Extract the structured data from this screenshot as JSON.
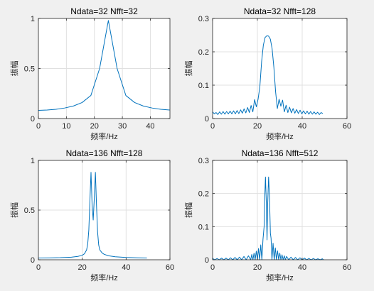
{
  "figure": {
    "background": "#f0f0f0",
    "line_color": "#0072bd",
    "axis_color": "#262626",
    "grid_color": "#e0e0e0"
  },
  "chart_data": [
    {
      "type": "line",
      "title": "Ndata=32 Nfft=32",
      "xlabel": "频率/Hz",
      "ylabel": "振幅",
      "xlim": [
        0,
        47
      ],
      "ylim": [
        0,
        1
      ],
      "xticks": [
        0,
        10,
        20,
        30,
        40
      ],
      "yticks": [
        0,
        0.5,
        1
      ],
      "xticklabels": [
        "0",
        "10",
        "20",
        "30",
        "40"
      ],
      "yticklabels": [
        "0",
        "0.5",
        "1"
      ],
      "grid": true,
      "series": [
        {
          "x": [
            0,
            3.125,
            6.25,
            9.375,
            12.5,
            15.625,
            18.75,
            21.875,
            25,
            28.125,
            31.25,
            34.375,
            37.5,
            40.625,
            43.75,
            46.875
          ],
          "y": [
            0.082,
            0.085,
            0.092,
            0.105,
            0.125,
            0.16,
            0.23,
            0.5,
            0.98,
            0.5,
            0.23,
            0.16,
            0.125,
            0.105,
            0.092,
            0.085
          ]
        }
      ]
    },
    {
      "type": "line",
      "title": "Ndata=32 Nfft=128",
      "xlabel": "频率/Hz",
      "ylabel": "振幅",
      "xlim": [
        0,
        60
      ],
      "ylim": [
        0,
        0.3
      ],
      "xticks": [
        0,
        20,
        40,
        60
      ],
      "yticks": [
        0,
        0.1,
        0.2,
        0.3
      ],
      "xticklabels": [
        "0",
        "20",
        "40",
        "60"
      ],
      "yticklabels": [
        "0",
        "0.1",
        "0.2",
        "0.3"
      ],
      "grid": true,
      "series": [
        {
          "x": [
            0,
            0.78,
            1.56,
            2.34,
            3.13,
            3.91,
            4.69,
            5.47,
            6.25,
            7.03,
            7.81,
            8.59,
            9.38,
            10.16,
            10.94,
            11.72,
            12.5,
            13.28,
            14.06,
            14.84,
            15.63,
            16.41,
            17.19,
            17.97,
            18.75,
            19.53,
            20.31,
            21.09,
            21.88,
            22.66,
            23.44,
            24.22,
            25,
            25.78,
            26.56,
            27.34,
            28.13,
            28.91,
            29.69,
            30.47,
            31.25,
            32.03,
            32.81,
            33.59,
            34.38,
            35.16,
            35.94,
            36.72,
            37.5,
            38.28,
            39.06,
            39.84,
            40.63,
            41.41,
            42.19,
            42.97,
            43.75,
            44.53,
            45.31,
            46.09,
            46.88,
            47.66,
            48.44,
            49.22
          ],
          "y": [
            0.02,
            0.014,
            0.018,
            0.012,
            0.02,
            0.013,
            0.021,
            0.013,
            0.021,
            0.014,
            0.022,
            0.014,
            0.023,
            0.014,
            0.024,
            0.015,
            0.026,
            0.016,
            0.029,
            0.017,
            0.033,
            0.018,
            0.039,
            0.02,
            0.057,
            0.035,
            0.058,
            0.095,
            0.17,
            0.22,
            0.243,
            0.248,
            0.247,
            0.238,
            0.21,
            0.155,
            0.08,
            0.03,
            0.058,
            0.037,
            0.055,
            0.02,
            0.04,
            0.018,
            0.034,
            0.017,
            0.03,
            0.016,
            0.027,
            0.015,
            0.025,
            0.014,
            0.023,
            0.014,
            0.022,
            0.013,
            0.021,
            0.013,
            0.02,
            0.013,
            0.019,
            0.012,
            0.018,
            0.015
          ]
        }
      ]
    },
    {
      "type": "line",
      "title": "Ndata=136 Nfft=128",
      "xlabel": "频率/Hz",
      "ylabel": "振幅",
      "xlim": [
        0,
        60
      ],
      "ylim": [
        0,
        1
      ],
      "xticks": [
        0,
        20,
        40,
        60
      ],
      "yticks": [
        0,
        0.5,
        1
      ],
      "xticklabels": [
        "0",
        "20",
        "40",
        "60"
      ],
      "yticklabels": [
        "0",
        "0.5",
        "1"
      ],
      "grid": true,
      "series": [
        {
          "x": [
            0,
            5,
            10,
            15,
            18,
            20,
            21,
            22,
            22.5,
            23,
            23.5,
            24,
            24.5,
            25,
            25.5,
            26,
            26.5,
            27,
            27.5,
            28,
            29,
            30,
            32,
            35,
            40,
            45,
            49.5
          ],
          "y": [
            0.018,
            0.019,
            0.021,
            0.026,
            0.034,
            0.045,
            0.06,
            0.1,
            0.16,
            0.3,
            0.6,
            0.88,
            0.55,
            0.4,
            0.62,
            0.88,
            0.55,
            0.28,
            0.15,
            0.1,
            0.07,
            0.055,
            0.04,
            0.03,
            0.023,
            0.02,
            0.018
          ]
        }
      ]
    },
    {
      "type": "line",
      "title": "Ndata=136 Nfft=512",
      "xlabel": "频率/Hz",
      "ylabel": "振幅",
      "xlim": [
        0,
        60
      ],
      "ylim": [
        0,
        0.3
      ],
      "xticks": [
        0,
        20,
        40,
        60
      ],
      "yticks": [
        0,
        0.1,
        0.2,
        0.3
      ],
      "xticklabels": [
        "0",
        "20",
        "40",
        "60"
      ],
      "yticklabels": [
        "0",
        "0.1",
        "0.2",
        "0.3"
      ],
      "grid": true,
      "series": [
        {
          "x": [
            0,
            1,
            2,
            3,
            4,
            5,
            6,
            7,
            8,
            9,
            10,
            11,
            12,
            13,
            14,
            15,
            16,
            17,
            17.5,
            18,
            18.5,
            19,
            19.5,
            20,
            20.5,
            21,
            21.5,
            22,
            22.5,
            23,
            23.3,
            23.6,
            24,
            24.3,
            24.6,
            25,
            25.4,
            25.8,
            26.1,
            26.5,
            27,
            27.5,
            28,
            28.5,
            29,
            29.5,
            30,
            30.5,
            31,
            31.5,
            32,
            32.5,
            33,
            34,
            35,
            36,
            37,
            38,
            39,
            40,
            41,
            42,
            43,
            44,
            45,
            46,
            47,
            48,
            49,
            49.5
          ],
          "y": [
            0.004,
            0.0,
            0.004,
            0.0,
            0.005,
            0.0,
            0.005,
            0.0,
            0.006,
            0.0,
            0.007,
            0.0,
            0.008,
            0.0,
            0.01,
            0.0,
            0.012,
            0.0,
            0.016,
            0.0,
            0.02,
            0.0,
            0.026,
            0.0,
            0.034,
            0.0,
            0.045,
            0.0,
            0.062,
            0.1,
            0.19,
            0.25,
            0.17,
            0.06,
            0.17,
            0.25,
            0.19,
            0.08,
            0.065,
            0.0,
            0.05,
            0.0,
            0.036,
            0.0,
            0.027,
            0.0,
            0.02,
            0.0,
            0.015,
            0.0,
            0.012,
            0.0,
            0.01,
            0.0,
            0.008,
            0.0,
            0.007,
            0.0,
            0.006,
            0.0,
            0.005,
            0.0,
            0.004,
            0.0,
            0.004,
            0.0,
            0.003,
            0.0,
            0.003,
            0.0
          ]
        }
      ]
    }
  ]
}
